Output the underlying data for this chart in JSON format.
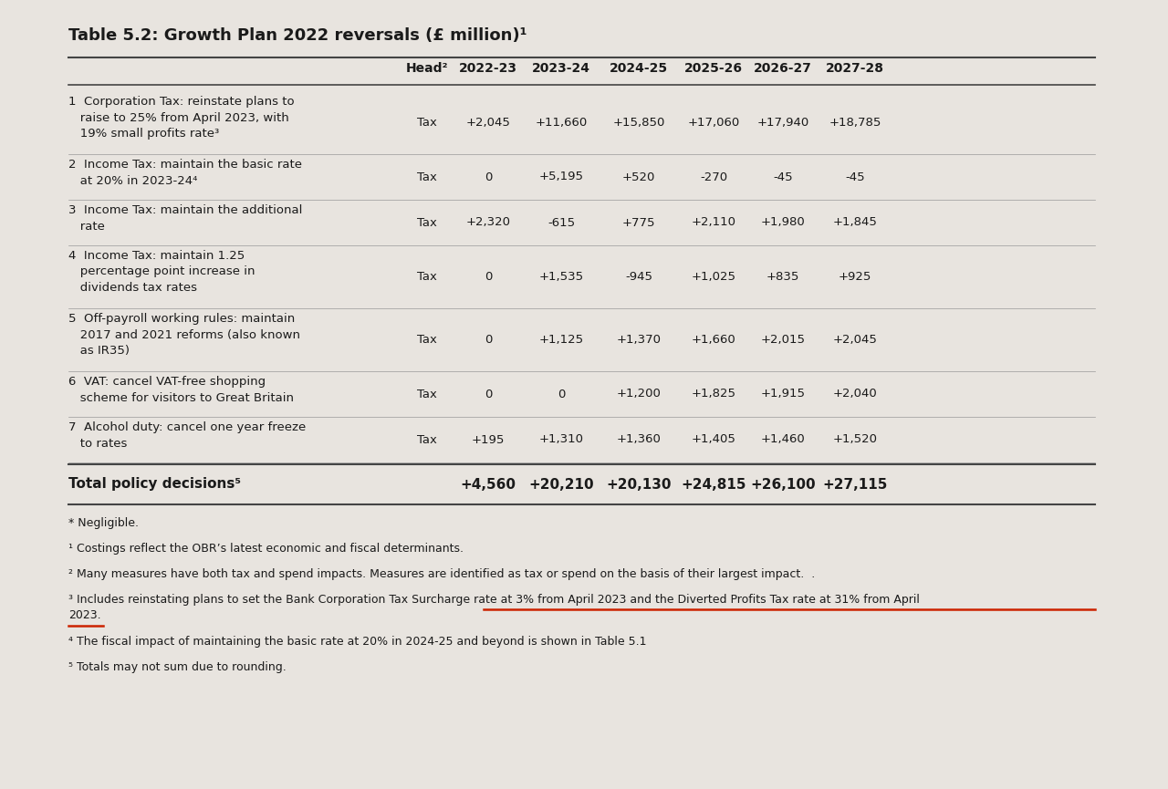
{
  "title": "Table 5.2: Growth Plan 2022 reversals (£ million)¹",
  "col_headers": [
    "Head²",
    "2022-23",
    "2023-24",
    "2024-25",
    "2025-26",
    "2026-27",
    "2027-28"
  ],
  "rows": [
    {
      "label": "1  Corporation Tax: reinstate plans to\n   raise to 25% from April 2023, with\n   19% small profits rate³",
      "head": "Tax",
      "values": [
        "+2,045",
        "+11,660",
        "+15,850",
        "+17,060",
        "+17,940",
        "+18,785"
      ],
      "nlines": 3
    },
    {
      "label": "2  Income Tax: maintain the basic rate\n   at 20% in 2023-24⁴",
      "head": "Tax",
      "values": [
        "0",
        "+5,195",
        "+520",
        "-270",
        "-45",
        "-45"
      ],
      "nlines": 2
    },
    {
      "label": "3  Income Tax: maintain the additional\n   rate",
      "head": "Tax",
      "values": [
        "+2,320",
        "-615",
        "+775",
        "+2,110",
        "+1,980",
        "+1,845"
      ],
      "nlines": 2
    },
    {
      "label": "4  Income Tax: maintain 1.25\n   percentage point increase in\n   dividends tax rates",
      "head": "Tax",
      "values": [
        "0",
        "+1,535",
        "-945",
        "+1,025",
        "+835",
        "+925"
      ],
      "nlines": 3
    },
    {
      "label": "5  Off-payroll working rules: maintain\n   2017 and 2021 reforms (also known\n   as IR35)",
      "head": "Tax",
      "values": [
        "0",
        "+1,125",
        "+1,370",
        "+1,660",
        "+2,015",
        "+2,045"
      ],
      "nlines": 3
    },
    {
      "label": "6  VAT: cancel VAT-free shopping\n   scheme for visitors to Great Britain",
      "head": "Tax",
      "values": [
        "0",
        "0",
        "+1,200",
        "+1,825",
        "+1,915",
        "+2,040"
      ],
      "nlines": 2
    },
    {
      "label": "7  Alcohol duty: cancel one year freeze\n   to rates",
      "head": "Tax",
      "values": [
        "+195",
        "+1,310",
        "+1,360",
        "+1,405",
        "+1,460",
        "+1,520"
      ],
      "nlines": 2
    }
  ],
  "total_label": "Total policy decisions⁵",
  "total_values": [
    "+4,560",
    "+20,210",
    "+20,130",
    "+24,815",
    "+26,100",
    "+27,115"
  ],
  "footnotes": [
    "* Negligible.",
    "¹ Costings reflect the OBR’s latest economic and fiscal determinants.",
    "² Many measures have both tax and spend impacts. Measures are identified as tax or spend on the basis of their largest impact.  .",
    "³ Includes reinstating plans to set the Bank Corporation Tax Surcharge rate at 3% from April 2023 and the Diverted Profits Tax rate at 31% from April\n2023.",
    "⁴ The fiscal impact of maintaining the basic rate at 20% in 2024-25 and beyond is shown in Table 5.1",
    "⁵ Totals may not sum due to rounding."
  ],
  "bg_color": "#e8e4df",
  "text_color": "#1a1a1a",
  "line_color": "#444444",
  "sep_color": "#999999"
}
